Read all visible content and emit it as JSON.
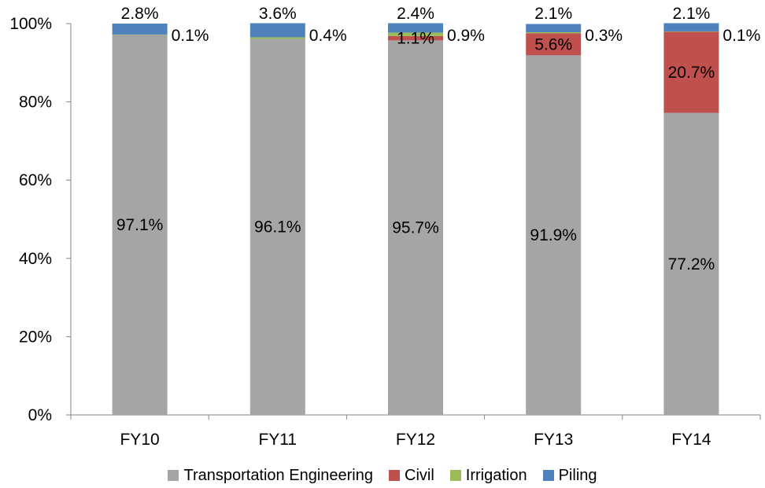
{
  "chart_data": {
    "type": "bar",
    "stacked": true,
    "categories": [
      "FY10",
      "FY11",
      "FY12",
      "FY13",
      "FY14"
    ],
    "series": [
      {
        "name": "Transportation Engineering",
        "color": "#a5a5a5",
        "values": [
          97.1,
          96.1,
          95.7,
          91.9,
          77.2
        ],
        "labels": [
          "97.1%",
          "96.1%",
          "95.7%",
          "91.9%",
          "77.2%"
        ]
      },
      {
        "name": "Civil",
        "color": "#c0504d",
        "values": [
          0,
          0,
          1.1,
          5.6,
          20.7
        ],
        "labels": [
          "",
          "",
          "1.1%",
          "5.6%",
          "20.7%"
        ]
      },
      {
        "name": "Irrigation",
        "color": "#9bbb59",
        "values": [
          0.1,
          0.4,
          0.9,
          0.3,
          0.1
        ],
        "labels": [
          "0.1%",
          "0.4%",
          "0.9%",
          "0.3%",
          "0.1%"
        ]
      },
      {
        "name": "Piling",
        "color": "#4f81bd",
        "values": [
          2.8,
          3.6,
          2.4,
          2.1,
          2.1
        ],
        "labels": [
          "2.8%",
          "3.6%",
          "2.4%",
          "2.1%",
          "2.1%"
        ]
      }
    ],
    "yticks": [
      "0%",
      "20%",
      "40%",
      "60%",
      "80%",
      "100%"
    ],
    "ylim": [
      0,
      100
    ],
    "legend_position": "bottom",
    "grid": false
  },
  "legend": {
    "items": [
      {
        "label": "Transportation Engineering",
        "color": "#a5a5a5"
      },
      {
        "label": "Civil",
        "color": "#c0504d"
      },
      {
        "label": "Irrigation",
        "color": "#9bbb59"
      },
      {
        "label": "Piling",
        "color": "#4f81bd"
      }
    ]
  }
}
